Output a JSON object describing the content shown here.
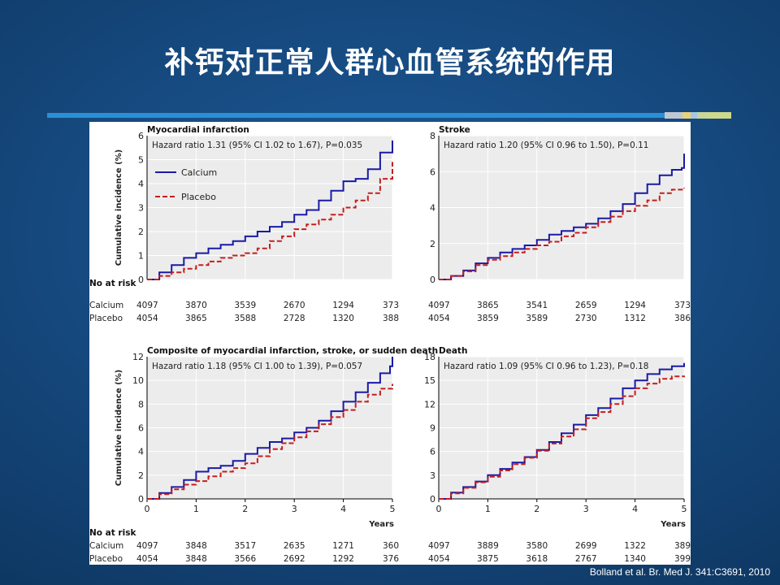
{
  "slide": {
    "title": "补钙对正常人群心血管系统的作用",
    "citation": "Bolland et al.  Br. Med J. 341:C3691, 2010"
  },
  "colors": {
    "calcium": "#1a1aa6",
    "placebo": "#c41e1e",
    "plot_bg": "#ececec",
    "accent_bar": "#2a8fd4"
  },
  "labels": {
    "ylabel": "Cumulative incidence (%)",
    "xlabel": "Years",
    "no_at_risk": "No at risk",
    "calcium": "Calcium",
    "placebo": "Placebo"
  },
  "chart_data": [
    {
      "type": "line",
      "title": "Myocardial infarction",
      "annotation": "Hazard ratio 1.31 (95% CI 1.02 to 1.67), P=0.035",
      "legend": [
        "Calcium",
        "Placebo"
      ],
      "ylim": [
        0,
        6
      ],
      "yticks": [
        0,
        1,
        2,
        3,
        4,
        5,
        6
      ],
      "xlim": [
        0,
        5
      ],
      "series": [
        {
          "name": "Calcium",
          "x": [
            0,
            0.25,
            0.5,
            0.75,
            1,
            1.25,
            1.5,
            1.75,
            2,
            2.25,
            2.5,
            2.75,
            3,
            3.25,
            3.5,
            3.75,
            4,
            4.25,
            4.5,
            4.75,
            5
          ],
          "values": [
            0,
            0.3,
            0.6,
            0.9,
            1.1,
            1.3,
            1.45,
            1.6,
            1.8,
            2.0,
            2.2,
            2.4,
            2.7,
            2.9,
            3.3,
            3.7,
            4.1,
            4.2,
            4.6,
            5.3,
            5.8
          ]
        },
        {
          "name": "Placebo",
          "x": [
            0,
            0.25,
            0.5,
            0.75,
            1,
            1.25,
            1.5,
            1.75,
            2,
            2.25,
            2.5,
            2.75,
            3,
            3.25,
            3.5,
            3.75,
            4,
            4.25,
            4.5,
            4.75,
            5
          ],
          "values": [
            0,
            0.15,
            0.3,
            0.45,
            0.6,
            0.75,
            0.9,
            1.0,
            1.1,
            1.3,
            1.6,
            1.8,
            2.1,
            2.3,
            2.5,
            2.7,
            3.0,
            3.3,
            3.6,
            4.2,
            4.9
          ]
        }
      ],
      "risk": {
        "calcium": [
          "4097",
          "3870",
          "3539",
          "2670",
          "1294",
          "373"
        ],
        "placebo": [
          "4054",
          "3865",
          "3588",
          "2728",
          "1320",
          "388"
        ]
      }
    },
    {
      "type": "line",
      "title": "Stroke",
      "annotation": "Hazard ratio 1.20 (95% CI 0.96 to 1.50), P=0.11",
      "ylim": [
        0,
        8
      ],
      "yticks": [
        0,
        2,
        4,
        6,
        8
      ],
      "xlim": [
        0,
        5
      ],
      "series": [
        {
          "name": "Calcium",
          "x": [
            0,
            0.25,
            0.5,
            0.75,
            1,
            1.25,
            1.5,
            1.75,
            2,
            2.25,
            2.5,
            2.75,
            3,
            3.25,
            3.5,
            3.75,
            4,
            4.25,
            4.5,
            4.75,
            4.95,
            5
          ],
          "values": [
            0,
            0.2,
            0.5,
            0.9,
            1.2,
            1.5,
            1.7,
            1.9,
            2.2,
            2.5,
            2.7,
            2.9,
            3.1,
            3.4,
            3.8,
            4.2,
            4.8,
            5.3,
            5.8,
            6.1,
            6.2,
            7.0
          ]
        },
        {
          "name": "Placebo",
          "x": [
            0,
            0.25,
            0.5,
            0.75,
            1,
            1.25,
            1.5,
            1.75,
            2,
            2.25,
            2.5,
            2.75,
            3,
            3.25,
            3.5,
            3.75,
            4,
            4.25,
            4.5,
            4.75,
            5
          ],
          "values": [
            0,
            0.2,
            0.45,
            0.8,
            1.1,
            1.3,
            1.5,
            1.7,
            1.9,
            2.1,
            2.4,
            2.6,
            2.9,
            3.2,
            3.5,
            3.8,
            4.1,
            4.4,
            4.8,
            5.0,
            5.1
          ]
        }
      ],
      "risk": {
        "calcium": [
          "4097",
          "3865",
          "3541",
          "2659",
          "1294",
          "373"
        ],
        "placebo": [
          "4054",
          "3859",
          "3589",
          "2730",
          "1312",
          "386"
        ]
      }
    },
    {
      "type": "line",
      "title": "Composite of myocardial infarction, stroke, or sudden death",
      "annotation": "Hazard ratio 1.18 (95% CI 1.00 to 1.39), P=0.057",
      "ylim": [
        0,
        12
      ],
      "yticks": [
        0,
        2,
        4,
        6,
        8,
        10,
        12
      ],
      "xlim": [
        0,
        5
      ],
      "xticks": [
        0,
        1,
        2,
        3,
        4,
        5
      ],
      "series": [
        {
          "name": "Calcium",
          "x": [
            0,
            0.25,
            0.5,
            0.75,
            1,
            1.25,
            1.5,
            1.75,
            2,
            2.25,
            2.5,
            2.75,
            3,
            3.25,
            3.5,
            3.75,
            4,
            4.25,
            4.5,
            4.75,
            4.95,
            5
          ],
          "values": [
            0,
            0.5,
            1.0,
            1.6,
            2.3,
            2.6,
            2.8,
            3.2,
            3.8,
            4.3,
            4.8,
            5.1,
            5.6,
            6.0,
            6.6,
            7.4,
            8.2,
            9.0,
            9.8,
            10.6,
            11.2,
            12.0
          ]
        },
        {
          "name": "Placebo",
          "x": [
            0,
            0.25,
            0.5,
            0.75,
            1,
            1.25,
            1.5,
            1.75,
            2,
            2.25,
            2.5,
            2.75,
            3,
            3.25,
            3.5,
            3.75,
            4,
            4.25,
            4.5,
            4.75,
            5
          ],
          "values": [
            0,
            0.4,
            0.8,
            1.2,
            1.5,
            1.9,
            2.3,
            2.6,
            3.0,
            3.6,
            4.2,
            4.7,
            5.2,
            5.7,
            6.3,
            6.9,
            7.5,
            8.2,
            8.8,
            9.3,
            9.7
          ]
        }
      ],
      "risk": {
        "calcium": [
          "4097",
          "3848",
          "3517",
          "2635",
          "1271",
          "360"
        ],
        "placebo": [
          "4054",
          "3848",
          "3566",
          "2692",
          "1292",
          "376"
        ]
      }
    },
    {
      "type": "line",
      "title": "Death",
      "annotation": "Hazard ratio 1.09 (95% CI 0.96 to 1.23), P=0.18",
      "ylim": [
        0,
        18
      ],
      "yticks": [
        0,
        3,
        6,
        9,
        12,
        15,
        18
      ],
      "xlim": [
        0,
        5
      ],
      "xticks": [
        0,
        1,
        2,
        3,
        4,
        5
      ],
      "series": [
        {
          "name": "Calcium",
          "x": [
            0,
            0.25,
            0.5,
            0.75,
            1,
            1.25,
            1.5,
            1.75,
            2,
            2.25,
            2.5,
            2.75,
            3,
            3.25,
            3.5,
            3.75,
            4,
            4.25,
            4.5,
            4.75,
            5
          ],
          "values": [
            0,
            0.8,
            1.5,
            2.2,
            3.0,
            3.8,
            4.6,
            5.3,
            6.2,
            7.2,
            8.3,
            9.4,
            10.6,
            11.5,
            12.7,
            14.0,
            15.0,
            15.8,
            16.4,
            16.8,
            17.2
          ]
        },
        {
          "name": "Placebo",
          "x": [
            0,
            0.25,
            0.5,
            0.75,
            1,
            1.25,
            1.5,
            1.75,
            2,
            2.25,
            2.5,
            2.75,
            3,
            3.25,
            3.5,
            3.75,
            4,
            4.25,
            4.5,
            4.75,
            5
          ],
          "values": [
            0,
            0.7,
            1.4,
            2.1,
            2.8,
            3.6,
            4.4,
            5.2,
            6.1,
            7.0,
            7.9,
            8.8,
            10.2,
            11.0,
            12.0,
            13.0,
            14.0,
            14.6,
            15.2,
            15.5,
            15.6
          ]
        }
      ],
      "risk": {
        "calcium": [
          "4097",
          "3889",
          "3580",
          "2699",
          "1322",
          "389"
        ],
        "placebo": [
          "4054",
          "3875",
          "3618",
          "2767",
          "1340",
          "399"
        ]
      }
    }
  ]
}
